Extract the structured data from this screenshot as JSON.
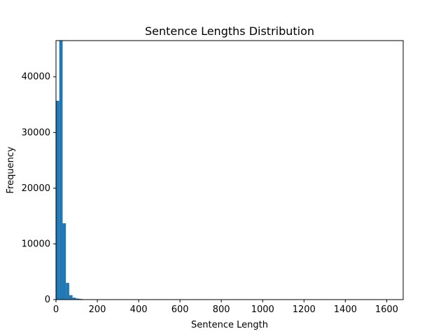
{
  "chart_data": {
    "type": "bar",
    "title": "Sentence Lengths Distribution",
    "xlabel": "Sentence Length",
    "ylabel": "Frequency",
    "xlim": [
      0,
      1680
    ],
    "ylim": [
      0,
      46500
    ],
    "x_ticks": [
      0,
      200,
      400,
      600,
      800,
      1000,
      1200,
      1400,
      1600
    ],
    "y_ticks": [
      0,
      10000,
      20000,
      30000,
      40000
    ],
    "grid": false,
    "legend": "none",
    "bar_color": "#1f77b4",
    "bins": [
      {
        "x0": 0,
        "x1": 16,
        "value": 35700
      },
      {
        "x0": 16,
        "x1": 32,
        "value": 46500
      },
      {
        "x0": 32,
        "x1": 48,
        "value": 13700
      },
      {
        "x0": 48,
        "x1": 64,
        "value": 3000
      },
      {
        "x0": 64,
        "x1": 80,
        "value": 800
      },
      {
        "x0": 80,
        "x1": 96,
        "value": 350
      },
      {
        "x0": 96,
        "x1": 112,
        "value": 200
      },
      {
        "x0": 112,
        "x1": 128,
        "value": 120
      },
      {
        "x0": 128,
        "x1": 144,
        "value": 60
      },
      {
        "x0": 144,
        "x1": 160,
        "value": 30
      },
      {
        "x0": 160,
        "x1": 176,
        "value": 20
      },
      {
        "x0": 176,
        "x1": 192,
        "value": 10
      }
    ]
  }
}
